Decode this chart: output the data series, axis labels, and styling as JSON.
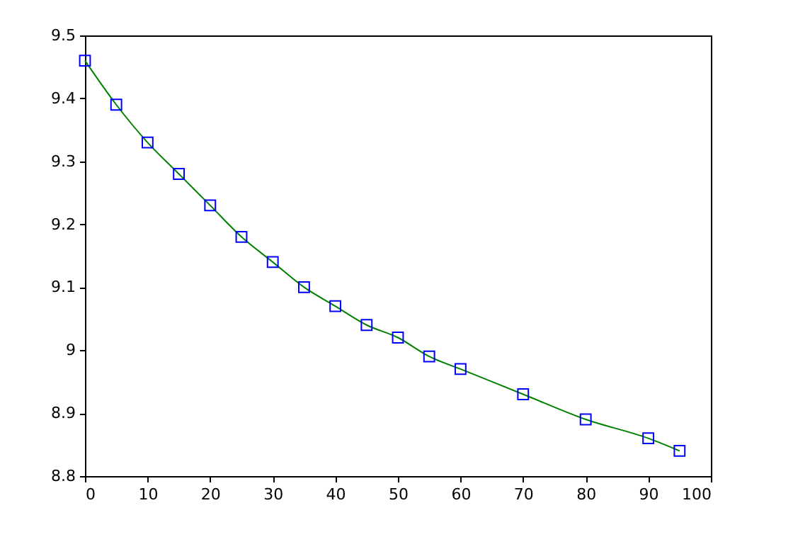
{
  "chart_data": {
    "type": "scatter",
    "x": [
      0,
      5,
      10,
      15,
      20,
      25,
      30,
      35,
      40,
      45,
      50,
      55,
      60,
      70,
      80,
      90,
      95
    ],
    "series": [
      {
        "type": "line",
        "color": "#008000",
        "marker": "none",
        "line_style": "solid",
        "x": [
          0,
          5,
          10,
          15,
          20,
          25,
          30,
          35,
          40,
          45,
          50,
          55,
          60,
          70,
          80,
          90,
          95
        ],
        "values": [
          9.46,
          9.39,
          9.33,
          9.28,
          9.23,
          9.18,
          9.14,
          9.1,
          9.07,
          9.04,
          9.02,
          8.99,
          8.97,
          8.93,
          8.89,
          8.86,
          8.84
        ]
      },
      {
        "color": "#0000ff",
        "marker": "square",
        "values": [
          9.46,
          9.39,
          9.33,
          9.28,
          9.23,
          9.18,
          9.14,
          9.1,
          9.07,
          9.04,
          9.02,
          8.99,
          8.97,
          8.93,
          8.89,
          8.86,
          8.84
        ]
      }
    ],
    "xlim": [
      0,
      100
    ],
    "xticks": [
      0,
      10,
      20,
      30,
      40,
      50,
      60,
      70,
      80,
      90,
      100
    ],
    "ylim": [
      8.8,
      9.5
    ],
    "yticks": [
      8.8,
      8.9,
      9,
      9.1,
      9.2,
      9.3,
      9.4,
      9.5
    ],
    "grid": false
  }
}
